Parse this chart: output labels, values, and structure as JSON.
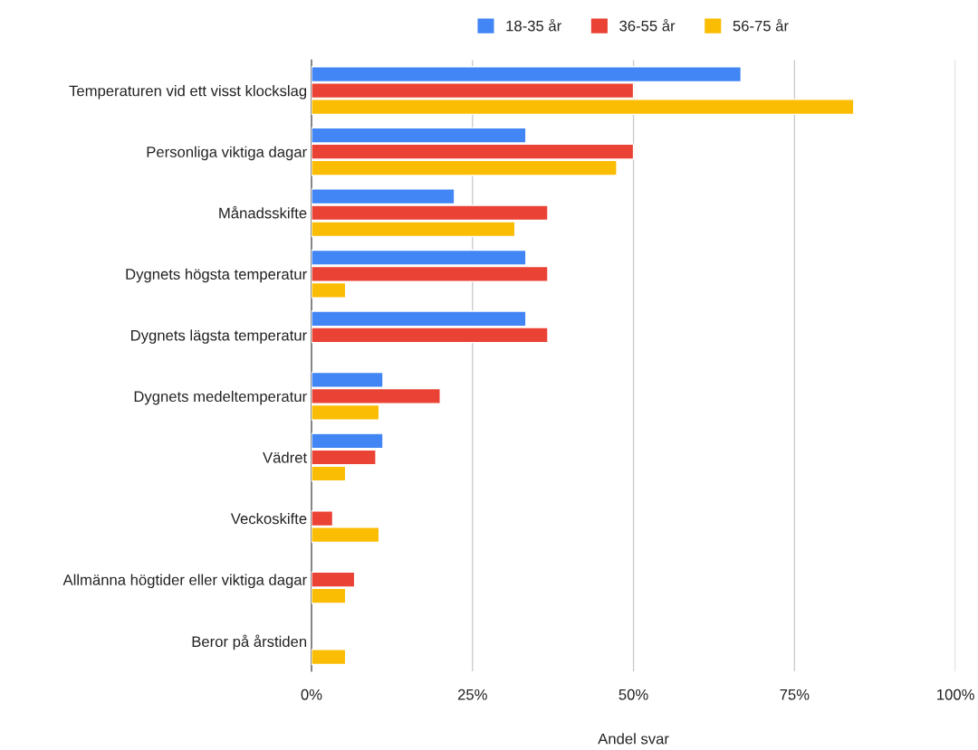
{
  "chart_data": {
    "type": "bar",
    "orientation": "horizontal",
    "xlabel": "Andel svar",
    "categories": [
      "Temperaturen vid ett visst klockslag",
      "Personliga viktiga dagar",
      "Månadsskifte",
      "Dygnets högsta temperatur",
      "Dygnets lägsta temperatur",
      "Dygnets medeltemperatur",
      "Vädret",
      "Veckoskifte",
      "Allmänna högtider eller viktiga dagar",
      "Beror på årstiden"
    ],
    "series": [
      {
        "name": "18-35 år",
        "color": "#4285f4",
        "values": [
          66.7,
          33.3,
          22.2,
          33.3,
          33.3,
          11.1,
          11.1,
          null,
          null,
          null
        ]
      },
      {
        "name": "36-55 år",
        "color": "#ea4335",
        "values": [
          50,
          50,
          36.7,
          36.7,
          36.7,
          20,
          10,
          3.3,
          6.7,
          null
        ]
      },
      {
        "name": "56-75 år",
        "color": "#fbbc04",
        "values": [
          84.2,
          47.4,
          31.6,
          5.3,
          null,
          10.5,
          5.3,
          10.5,
          5.3,
          5.3
        ]
      }
    ],
    "xlim": [
      0,
      100
    ],
    "xticks": [
      {
        "value": 0,
        "label": "0%"
      },
      {
        "value": 25,
        "label": "25%"
      },
      {
        "value": 50,
        "label": "50%"
      },
      {
        "value": 75,
        "label": "75%"
      },
      {
        "value": 100,
        "label": "100%"
      }
    ],
    "grid": "x",
    "legend": "top"
  }
}
